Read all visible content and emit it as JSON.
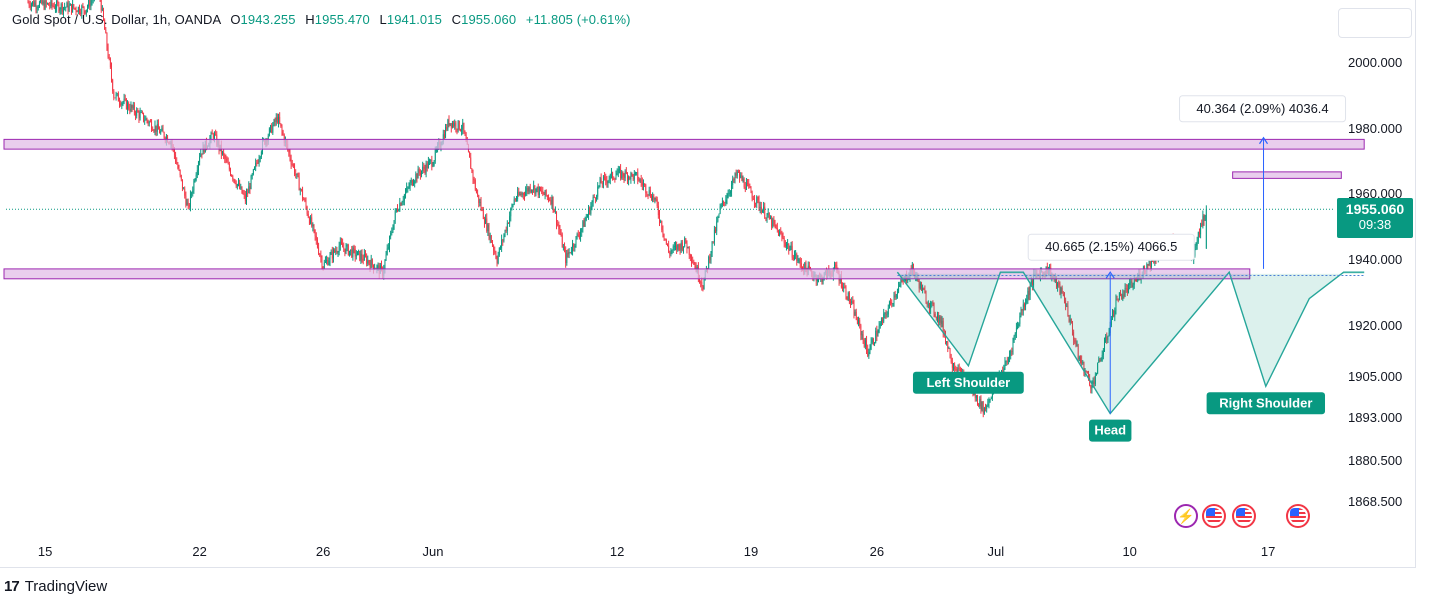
{
  "header": {
    "symbol": "Gold Spot / U.S. Dollar, 1h, OANDA",
    "open_key": "O",
    "open": "1943.255",
    "high_key": "H",
    "high": "1955.470",
    "low_key": "L",
    "low": "1941.015",
    "close_key": "C",
    "close": "1955.060",
    "change": "+11.805 (+0.61%)"
  },
  "price_tag": {
    "price": "1955.060",
    "countdown": "09:38",
    "color": "#089981"
  },
  "footer": {
    "logo": "17",
    "brand": "TradingView"
  },
  "chart_data": {
    "type": "candlestick",
    "y_axis": {
      "ticks": [
        "2000.000",
        "1980.000",
        "1960.000",
        "1940.000",
        "1920.000",
        "1905.000",
        "1893.000",
        "1880.500",
        "1868.500"
      ],
      "tick_values": [
        2000,
        1980,
        1960,
        1940,
        1920,
        1905,
        1893,
        1880.5,
        1868.5
      ],
      "scale": "log-like (compressed toward the bottom)"
    },
    "x_axis": {
      "ticks": [
        "15",
        "22",
        "26",
        "Jun",
        "12",
        "19",
        "26",
        "Jul",
        "10",
        "17"
      ],
      "tick_bars": [
        15,
        150,
        258,
        354,
        515,
        632,
        742,
        846,
        963,
        1084
      ]
    },
    "bar_count": 1000,
    "last_price": 1955.06,
    "up_color": "#089981",
    "down_color": "#f23645",
    "price_path": [
      [
        0,
        2018
      ],
      [
        50,
        2016
      ],
      [
        62,
        2022
      ],
      [
        75,
        1990
      ],
      [
        105,
        1982
      ],
      [
        125,
        1976
      ],
      [
        140,
        1955
      ],
      [
        150,
        1972
      ],
      [
        162,
        1978
      ],
      [
        175,
        1968
      ],
      [
        190,
        1958
      ],
      [
        205,
        1975
      ],
      [
        218,
        1983
      ],
      [
        232,
        1968
      ],
      [
        248,
        1950
      ],
      [
        258,
        1938
      ],
      [
        272,
        1944
      ],
      [
        295,
        1940
      ],
      [
        310,
        1936
      ],
      [
        322,
        1955
      ],
      [
        338,
        1965
      ],
      [
        354,
        1970
      ],
      [
        368,
        1982
      ],
      [
        380,
        1980
      ],
      [
        392,
        1960
      ],
      [
        410,
        1940
      ],
      [
        425,
        1958
      ],
      [
        440,
        1962
      ],
      [
        458,
        1958
      ],
      [
        470,
        1940
      ],
      [
        485,
        1950
      ],
      [
        500,
        1963
      ],
      [
        515,
        1966
      ],
      [
        532,
        1965
      ],
      [
        548,
        1958
      ],
      [
        560,
        1942
      ],
      [
        575,
        1945
      ],
      [
        590,
        1932
      ],
      [
        605,
        1955
      ],
      [
        620,
        1966
      ],
      [
        632,
        1960
      ],
      [
        648,
        1952
      ],
      [
        662,
        1945
      ],
      [
        676,
        1938
      ],
      [
        692,
        1934
      ],
      [
        706,
        1937
      ],
      [
        720,
        1926
      ],
      [
        734,
        1912
      ],
      [
        748,
        1922
      ],
      [
        760,
        1931
      ],
      [
        773,
        1937
      ],
      [
        785,
        1928
      ],
      [
        798,
        1921
      ],
      [
        808,
        1909
      ],
      [
        822,
        1902
      ],
      [
        836,
        1895
      ],
      [
        846,
        1903
      ],
      [
        857,
        1910
      ],
      [
        868,
        1924
      ],
      [
        880,
        1935
      ],
      [
        892,
        1937
      ],
      [
        906,
        1928
      ],
      [
        918,
        1911
      ],
      [
        930,
        1902
      ],
      [
        942,
        1915
      ],
      [
        952,
        1928
      ],
      [
        965,
        1932
      ],
      [
        978,
        1938
      ],
      [
        992,
        1943
      ],
      [
        1002,
        1946
      ],
      [
        1010,
        1943
      ],
      [
        1018,
        1941
      ],
      [
        1024,
        1949
      ],
      [
        1030,
        1955.06
      ]
    ],
    "zones": [
      {
        "name": "resistance-zone",
        "y_top": 1976.5,
        "y_bottom": 1973.5,
        "x_from": 0,
        "x_to": 1168
      },
      {
        "name": "support-zone",
        "y_top": 1937,
        "y_bottom": 1934,
        "x_from": 0,
        "x_to": 1068
      },
      {
        "name": "target-zone",
        "y_top": 1966.5,
        "y_bottom": 1964.5,
        "x_from": 1074,
        "x_to": 1148
      }
    ],
    "neckline": 1935,
    "pattern_polygon": [
      [
        760,
        1936
      ],
      [
        822,
        1908
      ],
      [
        850,
        1936
      ],
      [
        870,
        1936
      ],
      [
        946,
        1894
      ],
      [
        1050,
        1936
      ],
      [
        1082,
        1902
      ],
      [
        1120,
        1928
      ],
      [
        1150,
        1936
      ],
      [
        1168,
        1936
      ],
      [
        1168,
        1935.5
      ],
      [
        760,
        1935.5
      ]
    ],
    "pattern_fill_color": "#089981",
    "pattern_stroke_color": "#26a69a",
    "measures": [
      {
        "name": "pattern-height",
        "x": 946,
        "y_from": 1894,
        "y_to": 1936,
        "label": "40.665 (2.15%) 4066.5"
      },
      {
        "name": "target-projection",
        "x": 1080,
        "y_from": 1937,
        "y_to": 1977,
        "label": "40.364 (2.09%) 4036.4"
      }
    ],
    "annotations": [
      {
        "text": "Left Shoulder",
        "x": 822,
        "y": 1908
      },
      {
        "text": "Head",
        "x": 946,
        "y": 1894
      },
      {
        "text": "Right Shoulder",
        "x": 1082,
        "y": 1902
      }
    ],
    "annotation_color": "#089981",
    "zone_color": "#e1bee7",
    "zone_border": "#9c27b0",
    "measure_color": "#2962ff"
  }
}
